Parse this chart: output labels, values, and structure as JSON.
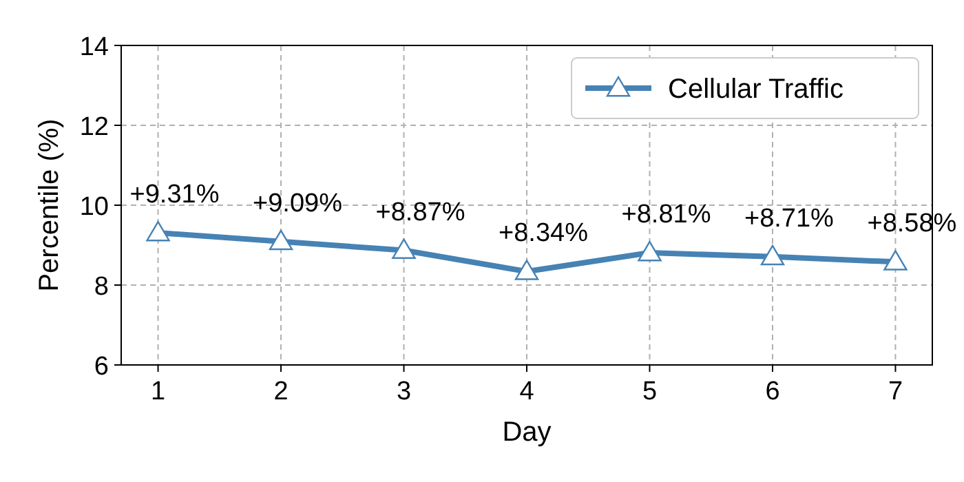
{
  "chart_data": {
    "type": "line",
    "xlabel": "Day",
    "ylabel": "Percentile (%)",
    "x": [
      1,
      2,
      3,
      4,
      5,
      6,
      7
    ],
    "series": [
      {
        "name": "Cellular Traffic",
        "color": "#4682b4",
        "values": [
          9.31,
          9.09,
          8.87,
          8.34,
          8.81,
          8.71,
          8.58
        ],
        "value_labels": [
          "+9.31%",
          "+9.09%",
          "+8.87%",
          "+8.34%",
          "+8.81%",
          "+8.71%",
          "+8.58%"
        ]
      }
    ],
    "xlim": [
      0.7,
      7.3
    ],
    "xticks": [
      1,
      2,
      3,
      4,
      5,
      6,
      7
    ],
    "ylim": [
      6,
      14
    ],
    "yticks": [
      6,
      8,
      10,
      12,
      14
    ],
    "grid": true,
    "legend": "top right",
    "marker": "triangle",
    "line_style": "solid"
  }
}
